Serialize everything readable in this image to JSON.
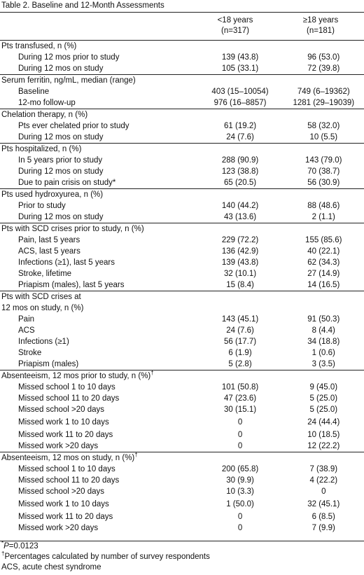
{
  "caption": "Table 2. Baseline and 12-Month Assessments",
  "columns": [
    {
      "label": "<18 years",
      "n": "(n=317)"
    },
    {
      "label": "≥18 years",
      "n": "(n=181)"
    }
  ],
  "sections": [
    {
      "title": "Pts transfused, n (%)",
      "rows": [
        {
          "label": "During 12 mos prior to study",
          "v1": "139 (43.8)",
          "v2": "96 (53.0)"
        },
        {
          "label": "During 12 mos on study",
          "v1": "105 (33.1)",
          "v2": "72 (39.8)"
        }
      ]
    },
    {
      "title": "Serum ferritin, ng/mL, median (range)",
      "rows": [
        {
          "label": "Baseline",
          "v1": "403 (15–10054)",
          "v2": "749 (6–19362)"
        },
        {
          "label": "12-mo follow-up",
          "v1": "976 (16–8857)",
          "v2": "1281 (29–19039)"
        }
      ]
    },
    {
      "title": "Chelation therapy, n (%)",
      "rows": [
        {
          "label": "Pts ever chelated prior to study",
          "v1": "61 (19.2)",
          "v2": "58 (32.0)"
        },
        {
          "label": "During 12 mos on study",
          "v1": "24 (7.6)",
          "v2": "10 (5.5)"
        }
      ]
    },
    {
      "title": "Pts hospitalized, n (%)",
      "rows": [
        {
          "label": "In 5 years prior to study",
          "v1": "288 (90.9)",
          "v2": "143 (79.0)"
        },
        {
          "label": "During 12 mos on study",
          "v1": "123 (38.8)",
          "v2": "70 (38.7)"
        },
        {
          "label": "Due to pain crisis on study*",
          "v1": "65 (20.5)",
          "v2": "56 (30.9)"
        }
      ]
    },
    {
      "title": "Pts used hydroxyurea, n (%)",
      "rows": [
        {
          "label": "Prior to study",
          "v1": "140 (44.2)",
          "v2": "88 (48.6)"
        },
        {
          "label": "During 12 mos on study",
          "v1": "43 (13.6)",
          "v2": "2 (1.1)"
        }
      ]
    },
    {
      "title": "Pts with SCD crises prior to study, n (%)",
      "rows": [
        {
          "label": "Pain, last 5 years",
          "v1": "229 (72.2)",
          "v2": "155 (85.6)"
        },
        {
          "label": "ACS, last 5 years",
          "v1": "136 (42.9)",
          "v2": "40 (22.1)"
        },
        {
          "label": "Infections (≥1), last 5 years",
          "v1": "139 (43.8)",
          "v2": "62 (34.3)"
        },
        {
          "label": "Stroke, lifetime",
          "v1": "32 (10.1)",
          "v2": "27 (14.9)"
        },
        {
          "label": "Priapism (males), last 5 years",
          "v1": "15 (8.4)",
          "v2": "14 (16.5)"
        }
      ]
    },
    {
      "title": "Pts with SCD crises at",
      "title2": "12 mos on study, n (%)",
      "rows": [
        {
          "label": "Pain",
          "v1": "143 (45.1)",
          "v2": "91 (50.3)"
        },
        {
          "label": "ACS",
          "v1": "24 (7.6)",
          "v2": "8 (4.4)"
        },
        {
          "label": "Infections (≥1)",
          "v1": "56 (17.7)",
          "v2": "34 (18.8)"
        },
        {
          "label": "Stroke",
          "v1": "6 (1.9)",
          "v2": "1 (0.6)"
        },
        {
          "label": "Priapism (males)",
          "v1": "5 (2.8)",
          "v2": "3 (3.5)"
        }
      ]
    },
    {
      "title": "Absenteeism, 12 mos prior to study, n (%)",
      "dagger": "†",
      "rows": [
        {
          "label": "Missed school 1 to 10 days",
          "v1": "101 (50.8)",
          "v2": "9 (45.0)"
        },
        {
          "label": "Missed school 11 to 20 days",
          "v1": "47 (23.6)",
          "v2": "5 (25.0)"
        },
        {
          "label": "Missed school >20 days",
          "v1": "30 (15.1)",
          "v2": "5 (25.0)"
        },
        {
          "label": "Missed work 1 to 10 days",
          "v1": "0",
          "v2": "24 (44.4)",
          "tall": true
        },
        {
          "label": "Missed work 11 to 20 days",
          "v1": "0",
          "v2": "10 (18.5)"
        },
        {
          "label": "Missed work >20 days",
          "v1": "0",
          "v2": "12 (22.2)"
        }
      ]
    },
    {
      "title": "Absenteeism, 12 mos on study, n (%)",
      "dagger": "†",
      "rows": [
        {
          "label": "Missed school 1 to 10 days",
          "v1": "200 (65.8)",
          "v2": "7 (38.9)"
        },
        {
          "label": "Missed school 11 to 20 days",
          "v1": "30 (9.9)",
          "v2": "4 (22.2)"
        },
        {
          "label": "Missed school >20 days",
          "v1": "10 (3.3)",
          "v2": "0"
        },
        {
          "label": "Missed work 1 to 10 days",
          "v1": "1 (50.0)",
          "v2": "32 (45.1)",
          "tall": true
        },
        {
          "label": "Missed work 11 to 20 days",
          "v1": "0",
          "v2": "6 (8.5)"
        },
        {
          "label": "Missed work >20 days",
          "v1": "0",
          "v2": "7 (9.9)"
        }
      ]
    }
  ],
  "footnotes": {
    "p_mark": "*",
    "p_label": "P",
    "p_value": "=0.0123",
    "dagger_mark": "†",
    "dagger_text": "Percentages calculated by number of survey respondents",
    "abbrev": "ACS, acute chest syndrome"
  }
}
